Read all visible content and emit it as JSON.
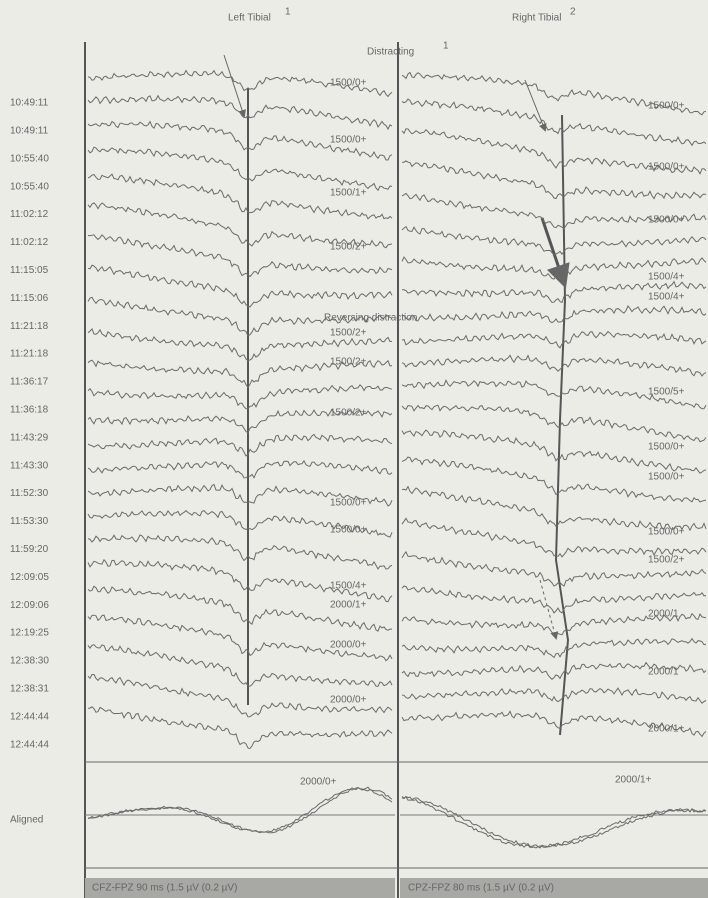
{
  "header": {
    "left_title": "Left Tibial",
    "left_sup": "1",
    "right_title": "Right Tibial",
    "right_sup": "2"
  },
  "annotations": {
    "distracting": "Distracting",
    "distracting_sup": "1",
    "reversing": "Reversing distraction"
  },
  "times": [
    "10:49:11",
    "10:49:11",
    "10:55:40",
    "10:55:40",
    "11:02:12",
    "11:02:12",
    "11:15:05",
    "11:15:06",
    "11:21:18",
    "11:21:18",
    "11:36:17",
    "11:36:18",
    "11:43:29",
    "11:43:30",
    "11:52:30",
    "11:53:30",
    "11:59:20",
    "12:09:05",
    "12:09:06",
    "12:19:25",
    "12:38:30",
    "12:38:31",
    "12:44:44",
    "12:44:44"
  ],
  "left_labels": [
    "1500/0+",
    "1500/0+",
    "1500/1+",
    "1500/2+",
    "1500/2+",
    "1500/2+",
    "1500/2+",
    "1500/0+",
    "1500/0+",
    "1500/4+",
    "2000/1+",
    "2000/0+",
    "2000/0+"
  ],
  "right_labels": [
    "1500/0+",
    "1500/0+",
    "1500/0+",
    "1500/4+",
    "1500/4+",
    "1500/5+",
    "1500/0+",
    "1500/0+",
    "1500/0+",
    "1500/2+",
    "2000/1",
    "2000/1",
    "2000/1+"
  ],
  "aligned": {
    "label": "Aligned",
    "left": "2000/0+",
    "right": "2000/1+"
  },
  "footer": {
    "left": "CFZ-FPZ 90 ms (1.5 µV (0.2 µV)",
    "right": "CPZ-FPZ 80 ms (1.5 µV (0.2 µV)"
  }
}
